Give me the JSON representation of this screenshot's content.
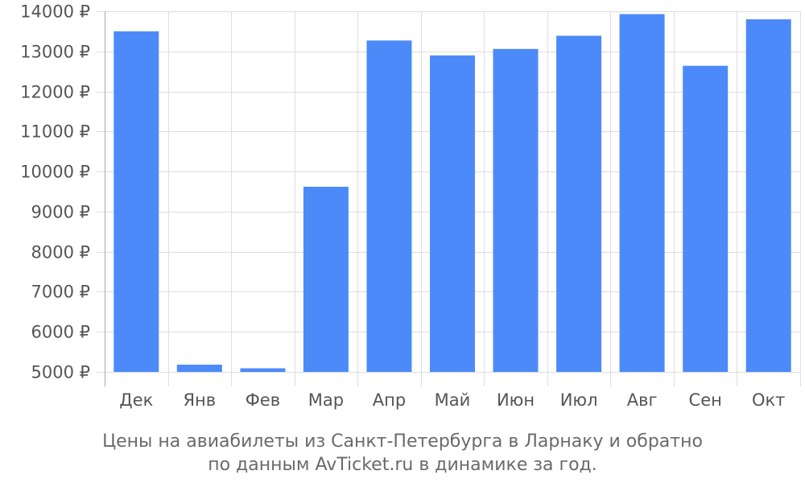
{
  "chart_data": {
    "type": "bar",
    "categories": [
      "Дек",
      "Янв",
      "Фев",
      "Мар",
      "Апр",
      "Май",
      "Июн",
      "Июл",
      "Авг",
      "Сен",
      "Окт"
    ],
    "values": [
      13500,
      5180,
      5090,
      9620,
      13270,
      12900,
      13060,
      13390,
      13930,
      12640,
      13800
    ],
    "ylim": [
      5000,
      14000
    ],
    "yticks": [
      5000,
      6000,
      7000,
      8000,
      9000,
      10000,
      11000,
      12000,
      13000,
      14000
    ],
    "tick_suffix": " ₽",
    "caption": [
      "Цены на авиабилеты из Санкт-Петербурга в Ларнаку и обратно",
      "по данным AvTicket.ru в динамике за год."
    ],
    "grid": true,
    "colors": {
      "bar": "#4d8af9",
      "grid": "#dddddd",
      "axis": "#aaaaaa"
    }
  }
}
